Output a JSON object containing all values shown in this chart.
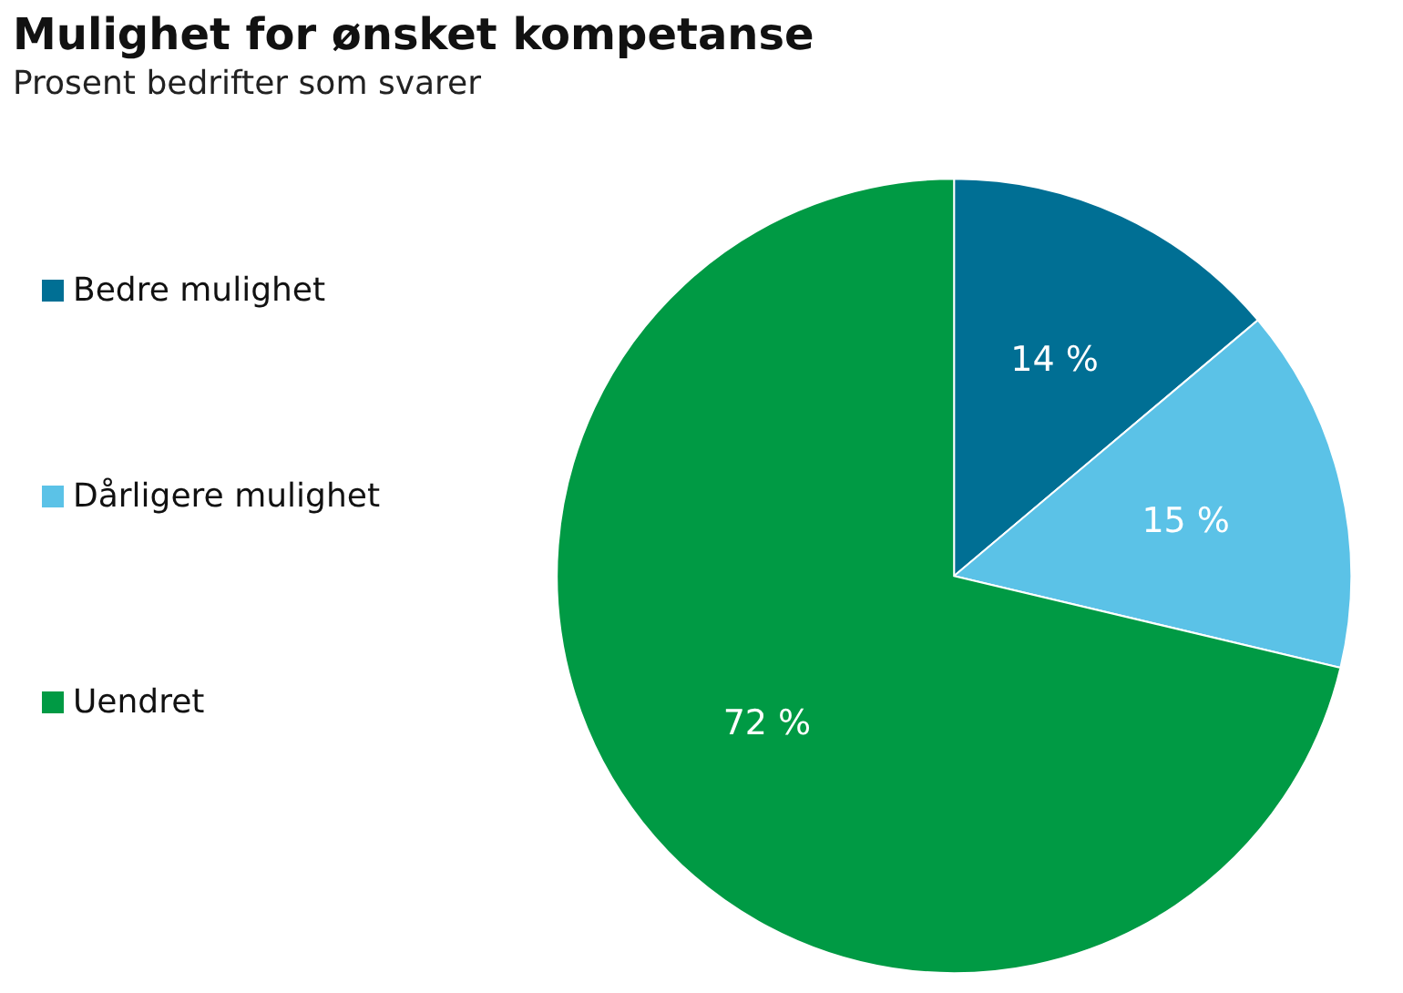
{
  "chart_data": {
    "type": "pie",
    "title": "Mulighet for ønsket kompetanse",
    "subtitle": "Prosent bedrifter som svarer",
    "categories": [
      "Bedre mulighet",
      "Dårligere mulighet",
      "Uendret"
    ],
    "values": [
      14,
      15,
      72
    ],
    "colors": [
      "#006f94",
      "#5bc2e7",
      "#009a44"
    ],
    "value_labels": [
      "14 %",
      "15 %",
      "72 %"
    ],
    "legend": "left"
  }
}
